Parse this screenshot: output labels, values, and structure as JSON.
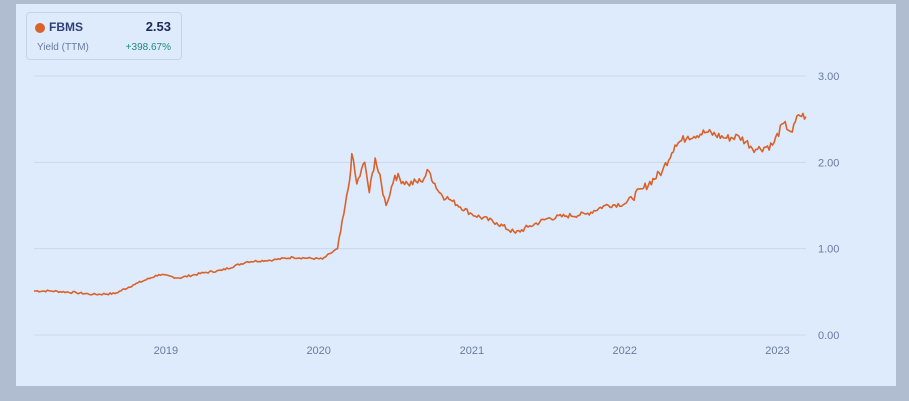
{
  "legend": {
    "ticker": "FBMS",
    "value": "2.53",
    "metric": "Yield (TTM)",
    "change": "+398.67%"
  },
  "colors": {
    "line": "#d9622b",
    "grid": "#c9d8ee",
    "change_positive": "#1f8a7a"
  },
  "chart_data": {
    "type": "line",
    "title": "",
    "xlabel": "",
    "ylabel": "",
    "x_range": [
      "2018-02-20",
      "2023-03-10"
    ],
    "ylim": [
      0,
      3
    ],
    "y_ticks": [
      "0.00",
      "1.00",
      "2.00",
      "3.00"
    ],
    "x_ticks": [
      "2019",
      "2020",
      "2021",
      "2022",
      "2023"
    ],
    "grid": "horizontal",
    "series": [
      {
        "name": "FBMS",
        "points": [
          [
            "2018-02-20",
            0.51
          ],
          [
            "2018-04-01",
            0.51
          ],
          [
            "2018-06-01",
            0.49
          ],
          [
            "2018-07-10",
            0.47
          ],
          [
            "2018-09-01",
            0.48
          ],
          [
            "2018-10-15",
            0.58
          ],
          [
            "2018-12-15",
            0.7
          ],
          [
            "2019-02-01",
            0.66
          ],
          [
            "2019-04-01",
            0.72
          ],
          [
            "2019-05-15",
            0.75
          ],
          [
            "2019-07-15",
            0.85
          ],
          [
            "2019-09-15",
            0.87
          ],
          [
            "2019-11-01",
            0.9
          ],
          [
            "2020-01-10",
            0.88
          ],
          [
            "2020-02-15",
            1.0
          ],
          [
            "2020-03-01",
            1.4
          ],
          [
            "2020-03-15",
            1.8
          ],
          [
            "2020-03-20",
            2.1
          ],
          [
            "2020-04-01",
            1.75
          ],
          [
            "2020-04-20",
            2.0
          ],
          [
            "2020-05-01",
            1.65
          ],
          [
            "2020-05-15",
            2.05
          ],
          [
            "2020-06-10",
            1.5
          ],
          [
            "2020-07-01",
            1.85
          ],
          [
            "2020-08-01",
            1.75
          ],
          [
            "2020-09-01",
            1.78
          ],
          [
            "2020-09-20",
            1.9
          ],
          [
            "2020-10-15",
            1.65
          ],
          [
            "2020-11-15",
            1.55
          ],
          [
            "2021-01-01",
            1.4
          ],
          [
            "2021-03-01",
            1.3
          ],
          [
            "2021-04-15",
            1.18
          ],
          [
            "2021-05-15",
            1.25
          ],
          [
            "2021-07-01",
            1.35
          ],
          [
            "2021-08-15",
            1.38
          ],
          [
            "2021-10-01",
            1.4
          ],
          [
            "2021-11-15",
            1.5
          ],
          [
            "2022-01-01",
            1.52
          ],
          [
            "2022-02-15",
            1.7
          ],
          [
            "2022-04-01",
            1.9
          ],
          [
            "2022-05-01",
            2.2
          ],
          [
            "2022-06-01",
            2.3
          ],
          [
            "2022-07-15",
            2.35
          ],
          [
            "2022-09-01",
            2.28
          ],
          [
            "2022-10-01",
            2.3
          ],
          [
            "2022-11-10",
            2.15
          ],
          [
            "2022-12-20",
            2.2
          ],
          [
            "2023-01-15",
            2.45
          ],
          [
            "2023-02-05",
            2.35
          ],
          [
            "2023-02-20",
            2.55
          ],
          [
            "2023-03-10",
            2.53
          ]
        ]
      }
    ]
  }
}
